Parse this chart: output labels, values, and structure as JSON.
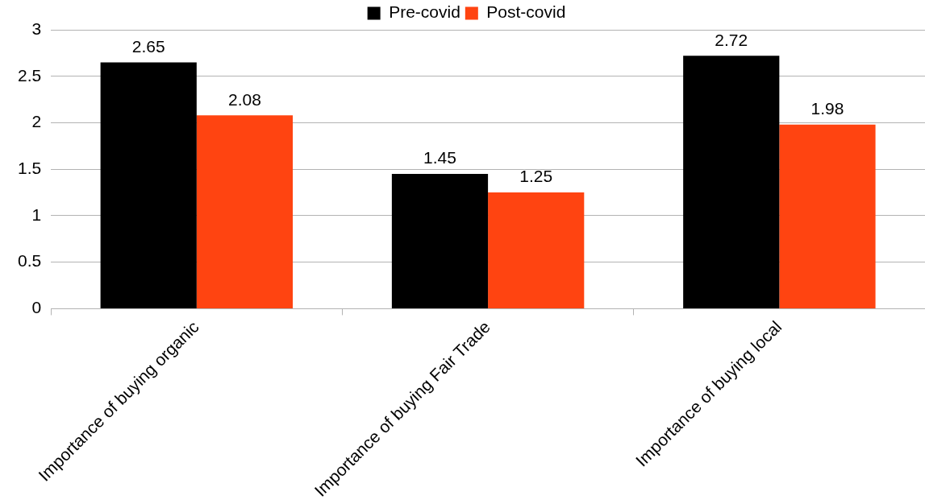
{
  "chart_data": {
    "type": "bar",
    "categories": [
      "Importance of buying organic",
      "Importance of buying Fair Trade",
      "Importance of buying local"
    ],
    "series": [
      {
        "name": "Pre-covid",
        "color": "#000000",
        "values": [
          2.65,
          1.45,
          2.72
        ]
      },
      {
        "name": "Post-covid",
        "color": "#ff4411",
        "values": [
          2.08,
          1.25,
          1.98
        ]
      }
    ],
    "ylim": [
      0,
      3
    ],
    "yticks": [
      0,
      0.5,
      1,
      1.5,
      2,
      2.5,
      3
    ],
    "grid": "y",
    "legend": "top",
    "data_labels": true
  }
}
